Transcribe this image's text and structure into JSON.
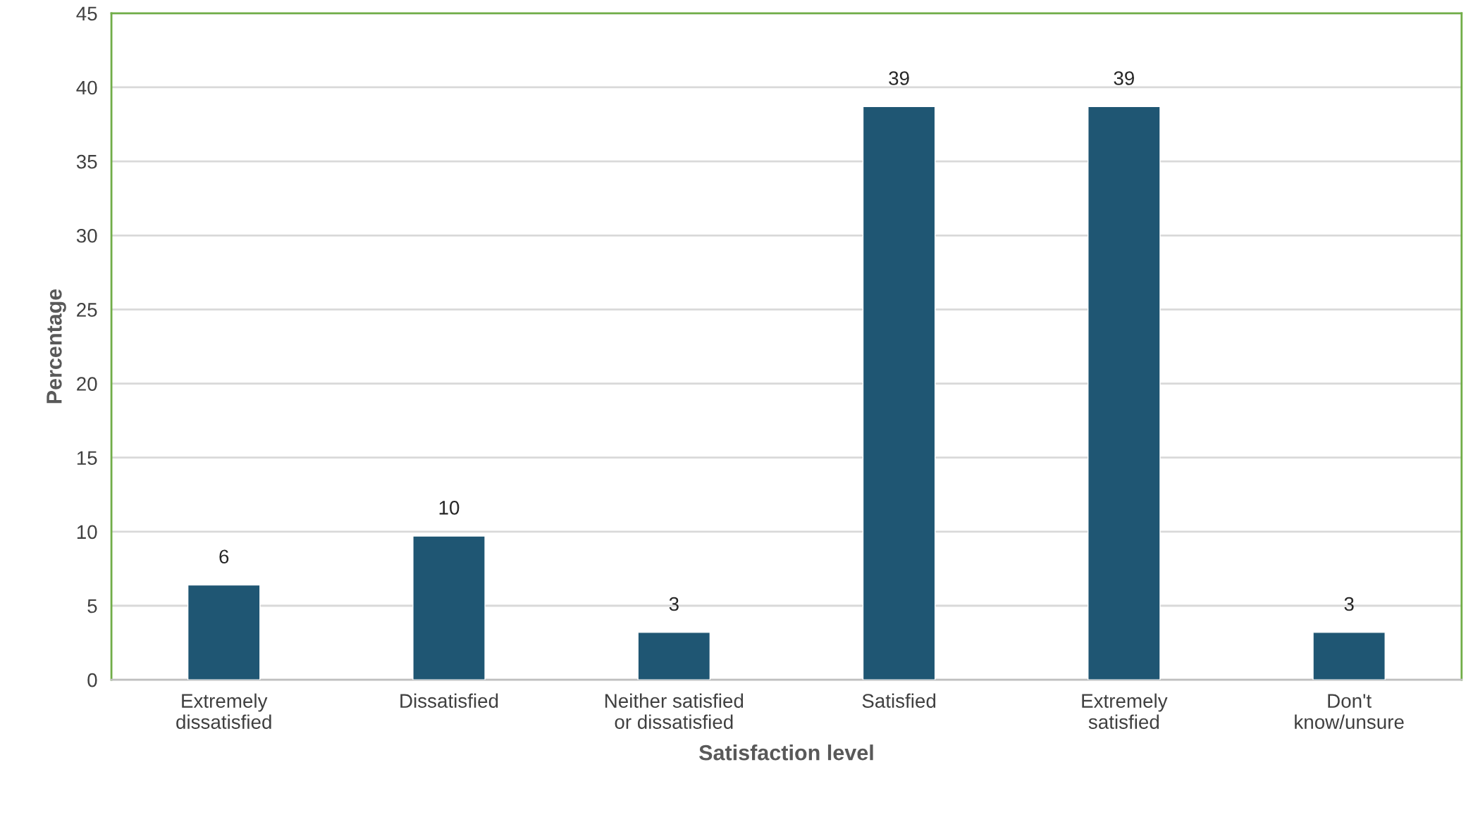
{
  "chart_data": {
    "type": "bar",
    "xlabel": "Satisfaction level",
    "ylabel": "Percentage",
    "categories": [
      "Extremely\ndissatisfied",
      "Dissatisfied",
      "Neither satisfied\nor dissatisfied",
      "Satisfied",
      "Extremely\nsatisfied",
      "Don't\nknow/unsure"
    ],
    "values": [
      6.4,
      9.7,
      3.2,
      38.7,
      38.7,
      3.2
    ],
    "value_labels": [
      "6",
      "10",
      "3",
      "39",
      "39",
      "3"
    ],
    "color": "#1f5673",
    "ylim": [
      0,
      45
    ],
    "yticks": [
      0,
      5,
      10,
      15,
      20,
      25,
      30,
      35,
      40,
      45
    ],
    "grid": "y",
    "legend": false
  }
}
